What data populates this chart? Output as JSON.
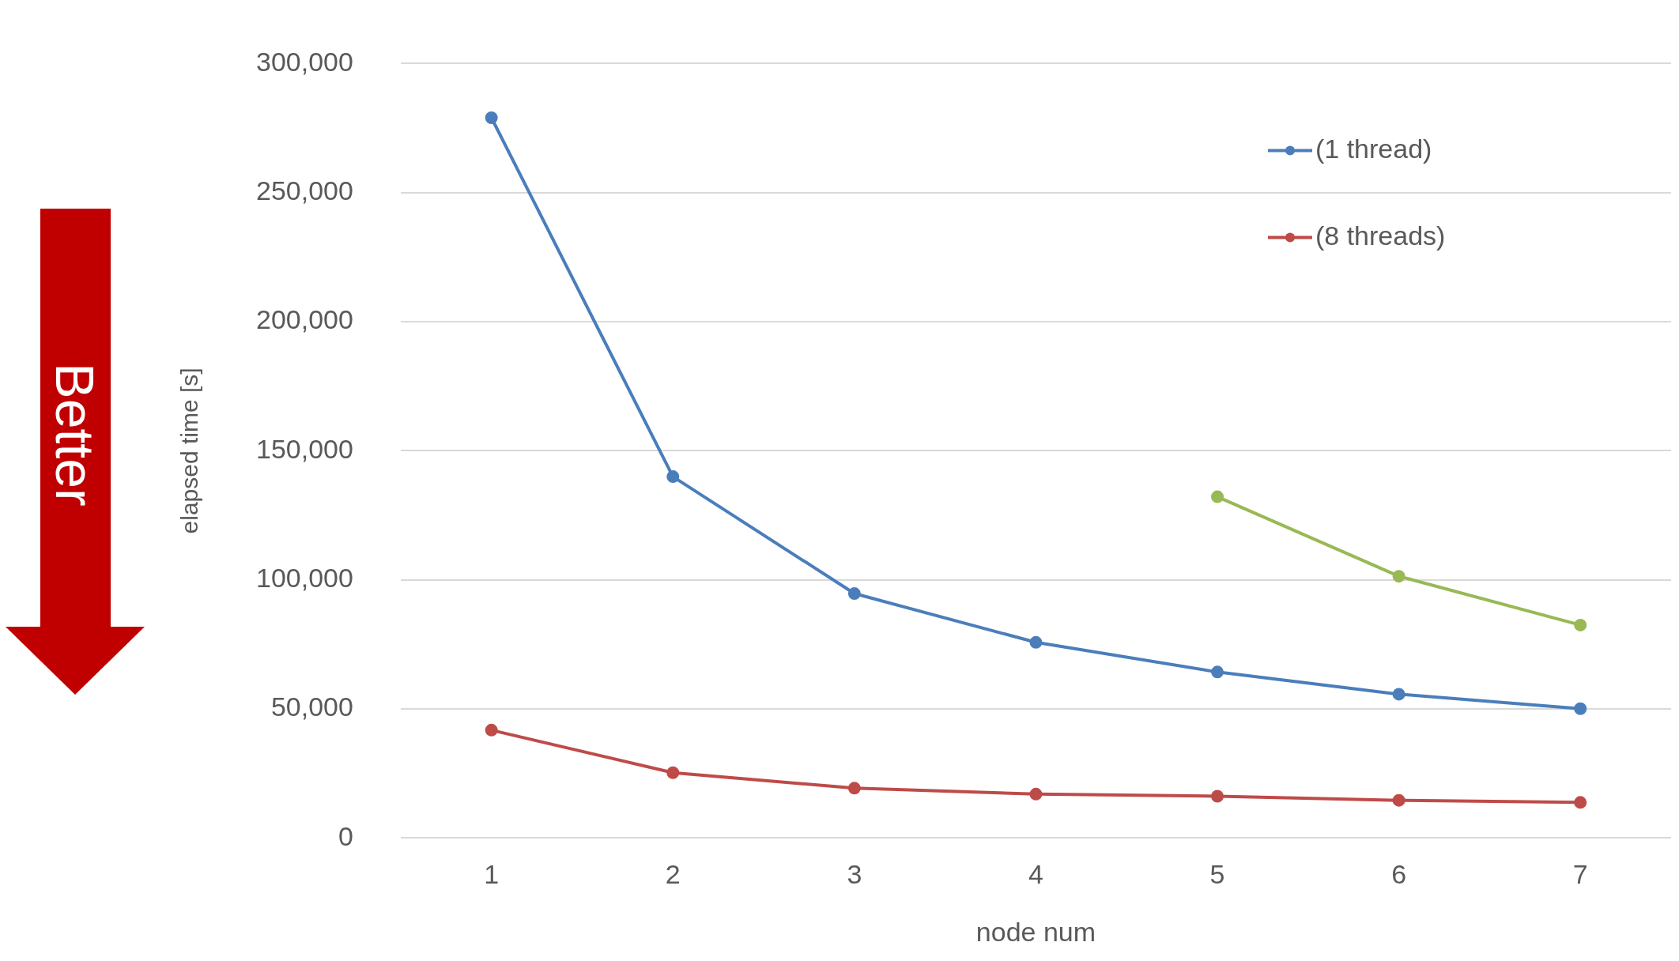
{
  "chart_data": {
    "type": "line",
    "xlabel": "node num",
    "ylabel": "elapsed time [s]",
    "categories": [
      "1",
      "2",
      "3",
      "4",
      "5",
      "6",
      "7"
    ],
    "series": [
      {
        "name": "(1 thread)",
        "color": "#4a7ebb",
        "values": [
          279000,
          140000,
          94700,
          75800,
          64300,
          55700,
          50100
        ]
      },
      {
        "name": "(8 threads)",
        "color": "#be4b48",
        "values": [
          41800,
          25300,
          19300,
          17000,
          16200,
          14600,
          13800
        ]
      },
      {
        "color": "#98b954",
        "values": [
          null,
          null,
          null,
          null,
          132200,
          101400,
          82500
        ]
      }
    ],
    "ylim": [
      0,
      300000
    ],
    "yticks": [
      {
        "value": 0,
        "label": "0"
      },
      {
        "value": 50000,
        "label": "50,000"
      },
      {
        "value": 100000,
        "label": "100,000"
      },
      {
        "value": 150000,
        "label": "150,000"
      },
      {
        "value": 200000,
        "label": "200,000"
      },
      {
        "value": 250000,
        "label": "250,000"
      },
      {
        "value": 300000,
        "label": "300,000"
      }
    ],
    "grid": "y",
    "legend": "top right",
    "marker": "circle",
    "line_style": "solid",
    "annotations": [
      "Better"
    ]
  }
}
